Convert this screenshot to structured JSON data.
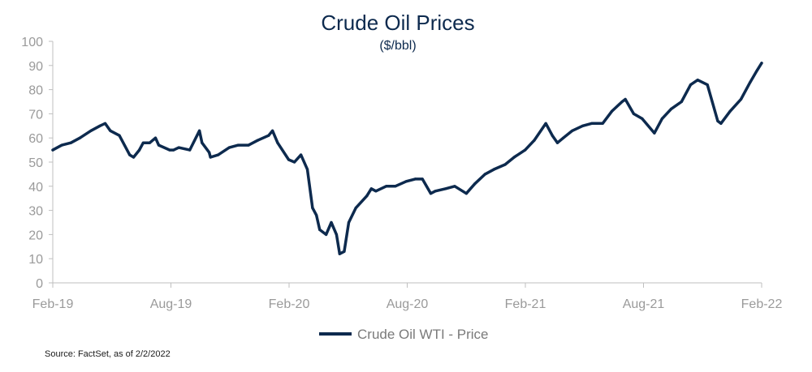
{
  "chart_data": {
    "type": "line",
    "title": "Crude Oil Prices",
    "subtitle": "($/bbl)",
    "source": "Source: FactSet, as of 2/2/2022",
    "xlabel": "",
    "ylabel": "",
    "ylim": [
      0,
      100
    ],
    "yticks": [
      0,
      10,
      20,
      30,
      40,
      50,
      60,
      70,
      80,
      90,
      100
    ],
    "xticks": [
      "Feb-19",
      "Aug-19",
      "Feb-20",
      "Aug-20",
      "Feb-21",
      "Aug-21",
      "Feb-22"
    ],
    "grid": false,
    "legend": "bottom-center",
    "colors": {
      "series": "#0d2a4e",
      "axis": "#bfbfbf",
      "tick_text": "#9a9a9a"
    },
    "series": [
      {
        "name": "Crude Oil WTI  - Price",
        "x": [
          "2019-02-01",
          "2019-02-15",
          "2019-03-01",
          "2019-03-15",
          "2019-04-01",
          "2019-04-15",
          "2019-04-23",
          "2019-05-01",
          "2019-05-15",
          "2019-05-31",
          "2019-06-06",
          "2019-06-15",
          "2019-06-21",
          "2019-07-01",
          "2019-07-10",
          "2019-07-15",
          "2019-08-01",
          "2019-08-07",
          "2019-08-15",
          "2019-09-01",
          "2019-09-16",
          "2019-09-20",
          "2019-10-01",
          "2019-10-03",
          "2019-10-15",
          "2019-11-01",
          "2019-11-15",
          "2019-12-01",
          "2019-12-15",
          "2020-01-01",
          "2020-01-07",
          "2020-01-15",
          "2020-02-01",
          "2020-02-10",
          "2020-02-20",
          "2020-03-01",
          "2020-03-09",
          "2020-03-15",
          "2020-03-20",
          "2020-03-30",
          "2020-04-07",
          "2020-04-15",
          "2020-04-20",
          "2020-04-27",
          "2020-05-04",
          "2020-05-15",
          "2020-06-01",
          "2020-06-08",
          "2020-06-15",
          "2020-07-01",
          "2020-07-15",
          "2020-08-01",
          "2020-08-15",
          "2020-08-26",
          "2020-09-08",
          "2020-09-15",
          "2020-10-01",
          "2020-10-15",
          "2020-11-02",
          "2020-11-15",
          "2020-12-01",
          "2020-12-15",
          "2021-01-01",
          "2021-01-15",
          "2021-02-01",
          "2021-02-15",
          "2021-03-05",
          "2021-03-15",
          "2021-03-23",
          "2021-04-01",
          "2021-04-15",
          "2021-05-01",
          "2021-05-15",
          "2021-06-01",
          "2021-06-15",
          "2021-07-01",
          "2021-07-06",
          "2021-07-19",
          "2021-08-01",
          "2021-08-20",
          "2021-09-01",
          "2021-09-15",
          "2021-10-01",
          "2021-10-15",
          "2021-10-26",
          "2021-11-10",
          "2021-11-26",
          "2021-12-01",
          "2021-12-15",
          "2022-01-01",
          "2022-01-15",
          "2022-01-26",
          "2022-02-02"
        ],
        "values": [
          55,
          57,
          58,
          60,
          63,
          65,
          66,
          63,
          61,
          53,
          52,
          55,
          58,
          58,
          60,
          57,
          55,
          55,
          56,
          55,
          63,
          58,
          54,
          52,
          53,
          56,
          57,
          57,
          59,
          61,
          63,
          58,
          51,
          50,
          53,
          47,
          31,
          28,
          22,
          20,
          25,
          20,
          12,
          13,
          25,
          31,
          36,
          39,
          38,
          40,
          40,
          42,
          43,
          43,
          37,
          38,
          39,
          40,
          37,
          41,
          45,
          47,
          49,
          52,
          55,
          59,
          66,
          61,
          58,
          60,
          63,
          65,
          66,
          66,
          71,
          75,
          76,
          70,
          68,
          62,
          68,
          72,
          75,
          82,
          84,
          82,
          67,
          66,
          71,
          76,
          83,
          88,
          91
        ]
      }
    ]
  }
}
